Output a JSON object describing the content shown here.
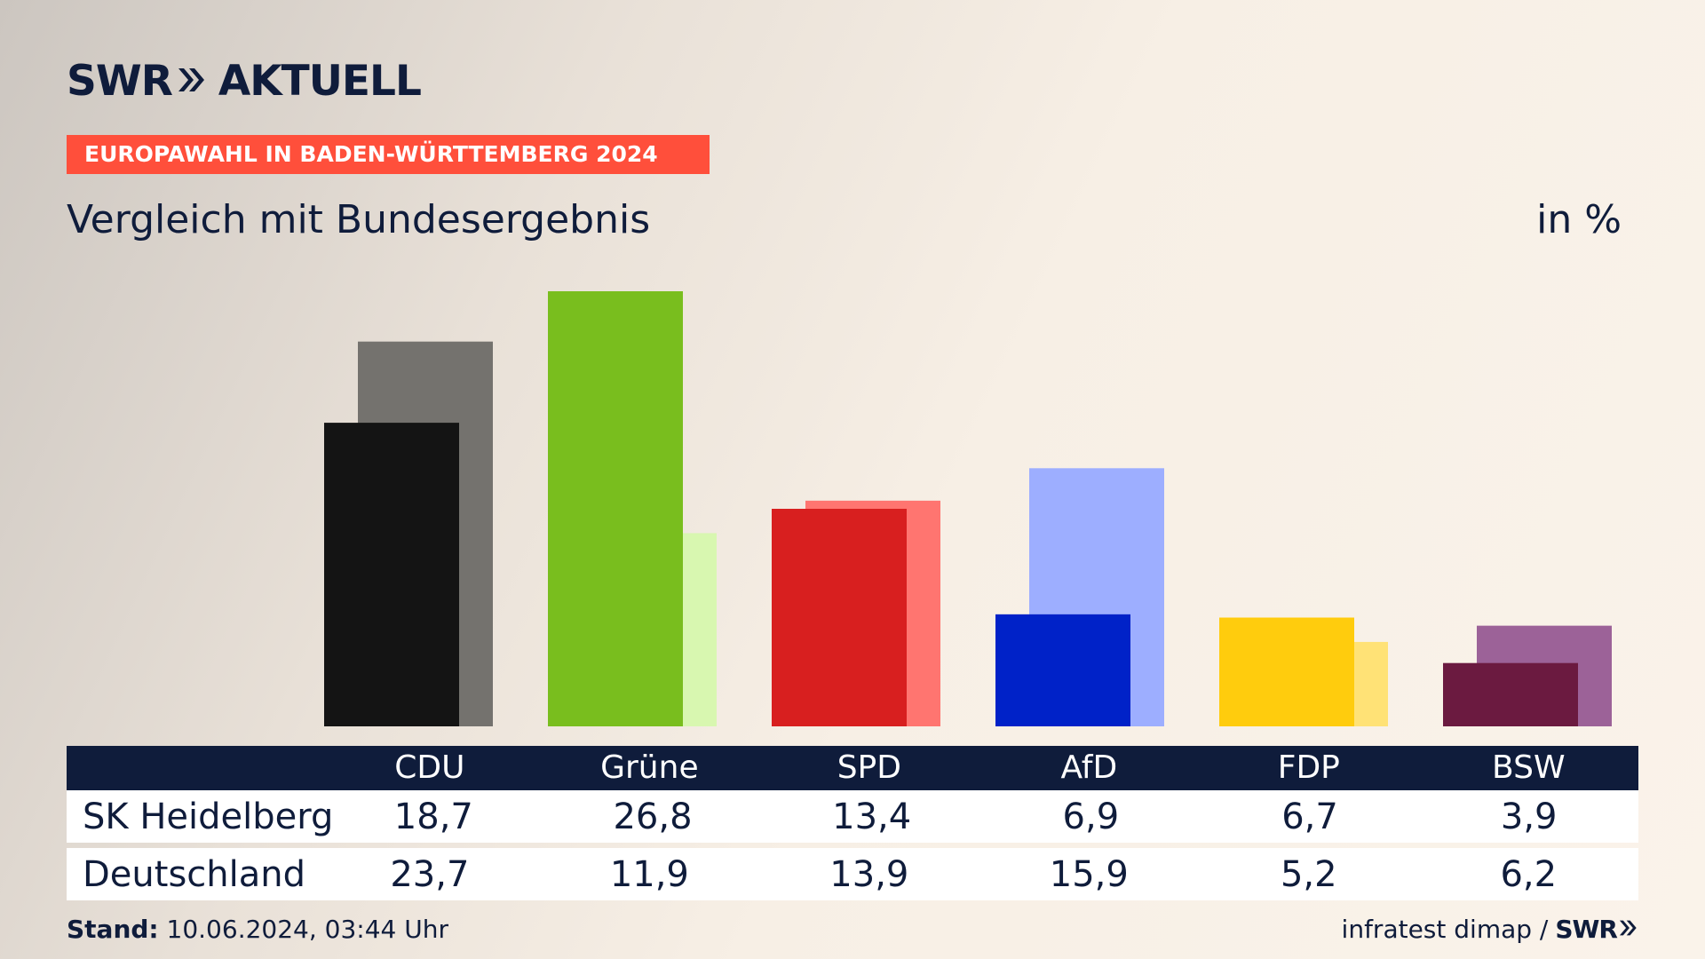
{
  "brand": {
    "name": "SWR",
    "product": "AKTUELL",
    "footer_brand": "SWR"
  },
  "tagline": "EUROPAWAHL IN BADEN-WÜRTTEMBERG 2024",
  "subtitle": "Vergleich mit Bundesergebnis",
  "unit": "in %",
  "table": {
    "headers": [
      "CDU",
      "Grüne",
      "SPD",
      "AfD",
      "FDP",
      "BSW"
    ],
    "rows": [
      {
        "label": "SK Heidelberg",
        "values": [
          "18,7",
          "26,8",
          "13,4",
          "6,9",
          "6,7",
          "3,9"
        ]
      },
      {
        "label": "Deutschland",
        "values": [
          "23,7",
          "11,9",
          "13,9",
          "15,9",
          "5,2",
          "6,2"
        ]
      }
    ]
  },
  "footer": {
    "stand_label": "Stand:",
    "stand_value": "10.06.2024, 03:44 Uhr",
    "source": "infratest dimap /"
  },
  "colors": {
    "navy": "#0f1c3b",
    "tagline_bg": "#ff4f3b",
    "primary": [
      "#141414",
      "#79be1e",
      "#d81f1f",
      "#0022c8",
      "#ffcc0d",
      "#6b1a40"
    ],
    "secondary": [
      "#74726e",
      "#d8f7b0",
      "#ff7570",
      "#9daeff",
      "#ffe276",
      "#9c6298"
    ]
  },
  "chart_data": {
    "type": "bar",
    "categories": [
      "CDU",
      "Grüne",
      "SPD",
      "AfD",
      "FDP",
      "BSW"
    ],
    "series": [
      {
        "name": "SK Heidelberg",
        "values": [
          18.7,
          26.8,
          13.4,
          6.9,
          6.7,
          3.9
        ]
      },
      {
        "name": "Deutschland",
        "values": [
          23.7,
          11.9,
          13.9,
          15.9,
          5.2,
          6.2
        ]
      }
    ],
    "ylim": [
      0,
      26.8
    ],
    "grid": false,
    "legend": "table-below"
  }
}
